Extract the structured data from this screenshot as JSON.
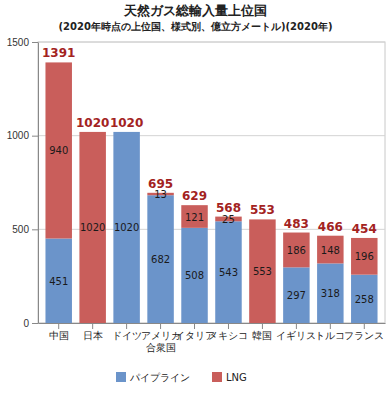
{
  "chart_data": {
    "type": "bar",
    "title": "天然ガス総輸入量上位国",
    "subtitle": "(2020年時点の上位国、様式別、億立方メートル)(2020年)",
    "categories": [
      "中国",
      "日本",
      "ドイツ",
      "アメリカ合衆国",
      "イタリア",
      "メキシコ",
      "韓国",
      "イギリス",
      "トルコ",
      "フランス"
    ],
    "series": [
      {
        "name": "パイプライン",
        "color": "#6b94ca",
        "values": [
          451,
          null,
          1020,
          682,
          508,
          543,
          null,
          297,
          318,
          258
        ]
      },
      {
        "name": "LNG",
        "color": "#c95e5b",
        "values": [
          940,
          1020,
          null,
          13,
          121,
          25,
          553,
          186,
          148,
          196
        ]
      }
    ],
    "totals": [
      1391,
      1020,
      1020,
      695,
      629,
      568,
      553,
      483,
      466,
      454
    ],
    "ylim": [
      0,
      1500
    ],
    "yticks": [
      0,
      500,
      1000,
      1500
    ],
    "stacked": true,
    "grid": true,
    "data_labels": true,
    "legend": "bottom"
  }
}
